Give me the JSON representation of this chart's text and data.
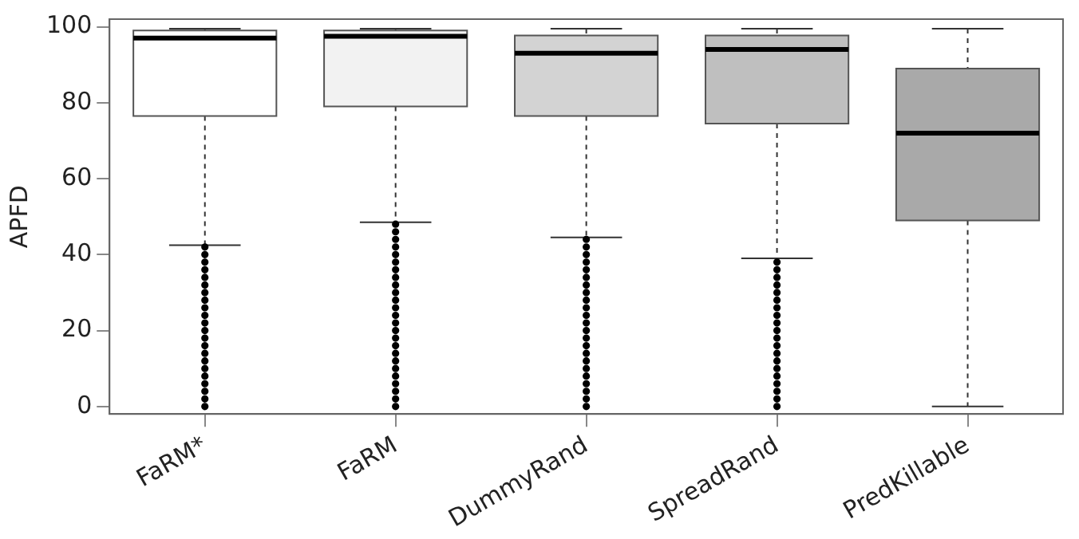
{
  "chart_data": {
    "type": "box",
    "ylabel": "APFD",
    "categories": [
      "FaRM*",
      "FaRM",
      "DummyRand",
      "SpreadRand",
      "PredKillable"
    ],
    "colors": [
      "#ffffff",
      "#f2f2f2",
      "#d3d3d3",
      "#bfbfbf",
      "#a9a9a9"
    ],
    "boxes": [
      {
        "low": 42.5,
        "q1": 76.5,
        "median": 97,
        "q3": 99,
        "high": 99.5,
        "outliers": [
          0,
          2,
          4,
          6,
          8,
          10,
          12,
          14,
          16,
          18,
          20,
          22,
          24,
          26,
          28,
          30,
          32,
          34,
          36,
          38,
          40,
          42
        ]
      },
      {
        "low": 48.5,
        "q1": 79,
        "median": 97.5,
        "q3": 99,
        "high": 99.5,
        "outliers": [
          0,
          2,
          4,
          6,
          8,
          10,
          12,
          14,
          16,
          18,
          20,
          22,
          24,
          26,
          28,
          30,
          32,
          34,
          36,
          38,
          40,
          42,
          44,
          46,
          48
        ]
      },
      {
        "low": 44.5,
        "q1": 76.5,
        "median": 93,
        "q3": 97.7,
        "high": 99.5,
        "outliers": [
          0,
          2,
          4,
          6,
          8,
          10,
          12,
          14,
          16,
          18,
          20,
          22,
          24,
          26,
          28,
          30,
          32,
          34,
          36,
          38,
          40,
          42,
          44
        ]
      },
      {
        "low": 39,
        "q1": 74.5,
        "median": 94,
        "q3": 97.7,
        "high": 99.5,
        "outliers": [
          0,
          2,
          4,
          6,
          8,
          10,
          12,
          14,
          16,
          18,
          20,
          22,
          24,
          26,
          28,
          30,
          32,
          34,
          36,
          38
        ]
      },
      {
        "low": 0,
        "q1": 49,
        "median": 72,
        "q3": 89,
        "high": 99.5
      }
    ],
    "ylim": [
      -2,
      102
    ],
    "yticks": [
      0,
      20,
      40,
      60,
      80,
      100
    ],
    "grid": false,
    "legend": false,
    "marker": "circle"
  }
}
